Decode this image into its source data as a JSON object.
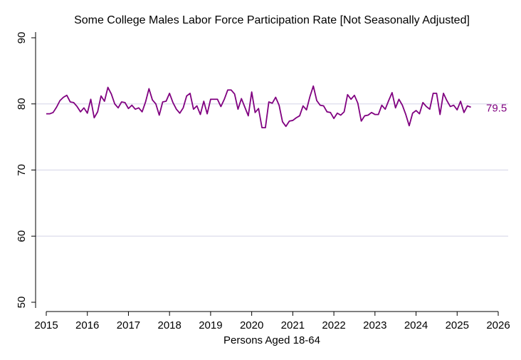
{
  "chart_data": {
    "type": "line",
    "title": "Some College Males Labor Force Participation Rate [Not Seasonally Adjusted]",
    "xlabel": "Persons Aged 18-64",
    "ylabel": "",
    "xlim": [
      2015,
      2026
    ],
    "ylim": [
      50,
      90
    ],
    "x_ticks": [
      "2015",
      "2016",
      "2017",
      "2018",
      "2019",
      "2020",
      "2021",
      "2022",
      "2023",
      "2024",
      "2025",
      "2026"
    ],
    "y_ticks": [
      "50",
      "60",
      "70",
      "80",
      "90"
    ],
    "grid": "horizontal",
    "line_color": "#800080",
    "grid_color": "#dcdcec",
    "end_label": "79.5",
    "series": [
      {
        "start": "2015-01",
        "frequency": "monthly",
        "values": [
          78.5,
          78.5,
          78.7,
          79.5,
          80.5,
          81.0,
          81.3,
          80.3,
          80.2,
          79.6,
          78.8,
          79.4,
          78.6,
          80.7,
          77.9,
          78.8,
          81.2,
          80.4,
          82.5,
          81.5,
          80.0,
          79.4,
          80.3,
          80.2,
          79.3,
          79.8,
          79.2,
          79.4,
          78.8,
          80.3,
          82.3,
          80.6,
          80.0,
          78.3,
          80.3,
          80.4,
          81.6,
          80.2,
          79.2,
          78.6,
          79.4,
          81.2,
          81.6,
          79.2,
          79.7,
          78.4,
          80.4,
          78.5,
          80.7,
          80.7,
          80.7,
          79.6,
          80.7,
          82.1,
          82.1,
          81.5,
          79.2,
          80.8,
          79.5,
          78.2,
          81.8,
          78.7,
          79.3,
          76.4,
          76.4,
          80.3,
          80.1,
          81.0,
          79.8,
          77.3,
          76.6,
          77.4,
          77.5,
          77.9,
          78.2,
          79.7,
          79.1,
          81.1,
          82.7,
          80.5,
          79.8,
          79.7,
          78.8,
          78.7,
          77.8,
          78.6,
          78.3,
          78.8,
          81.4,
          80.7,
          81.3,
          80.1,
          77.4,
          78.2,
          78.3,
          78.7,
          78.4,
          78.4,
          79.8,
          79.2,
          80.5,
          81.7,
          79.4,
          80.7,
          79.8,
          78.4,
          76.7,
          78.6,
          79.0,
          78.5,
          80.2,
          79.6,
          79.2,
          81.6,
          81.6,
          78.4,
          81.6,
          80.5,
          79.6,
          79.8,
          79.1,
          80.4,
          78.7,
          79.7,
          79.5
        ]
      }
    ]
  }
}
